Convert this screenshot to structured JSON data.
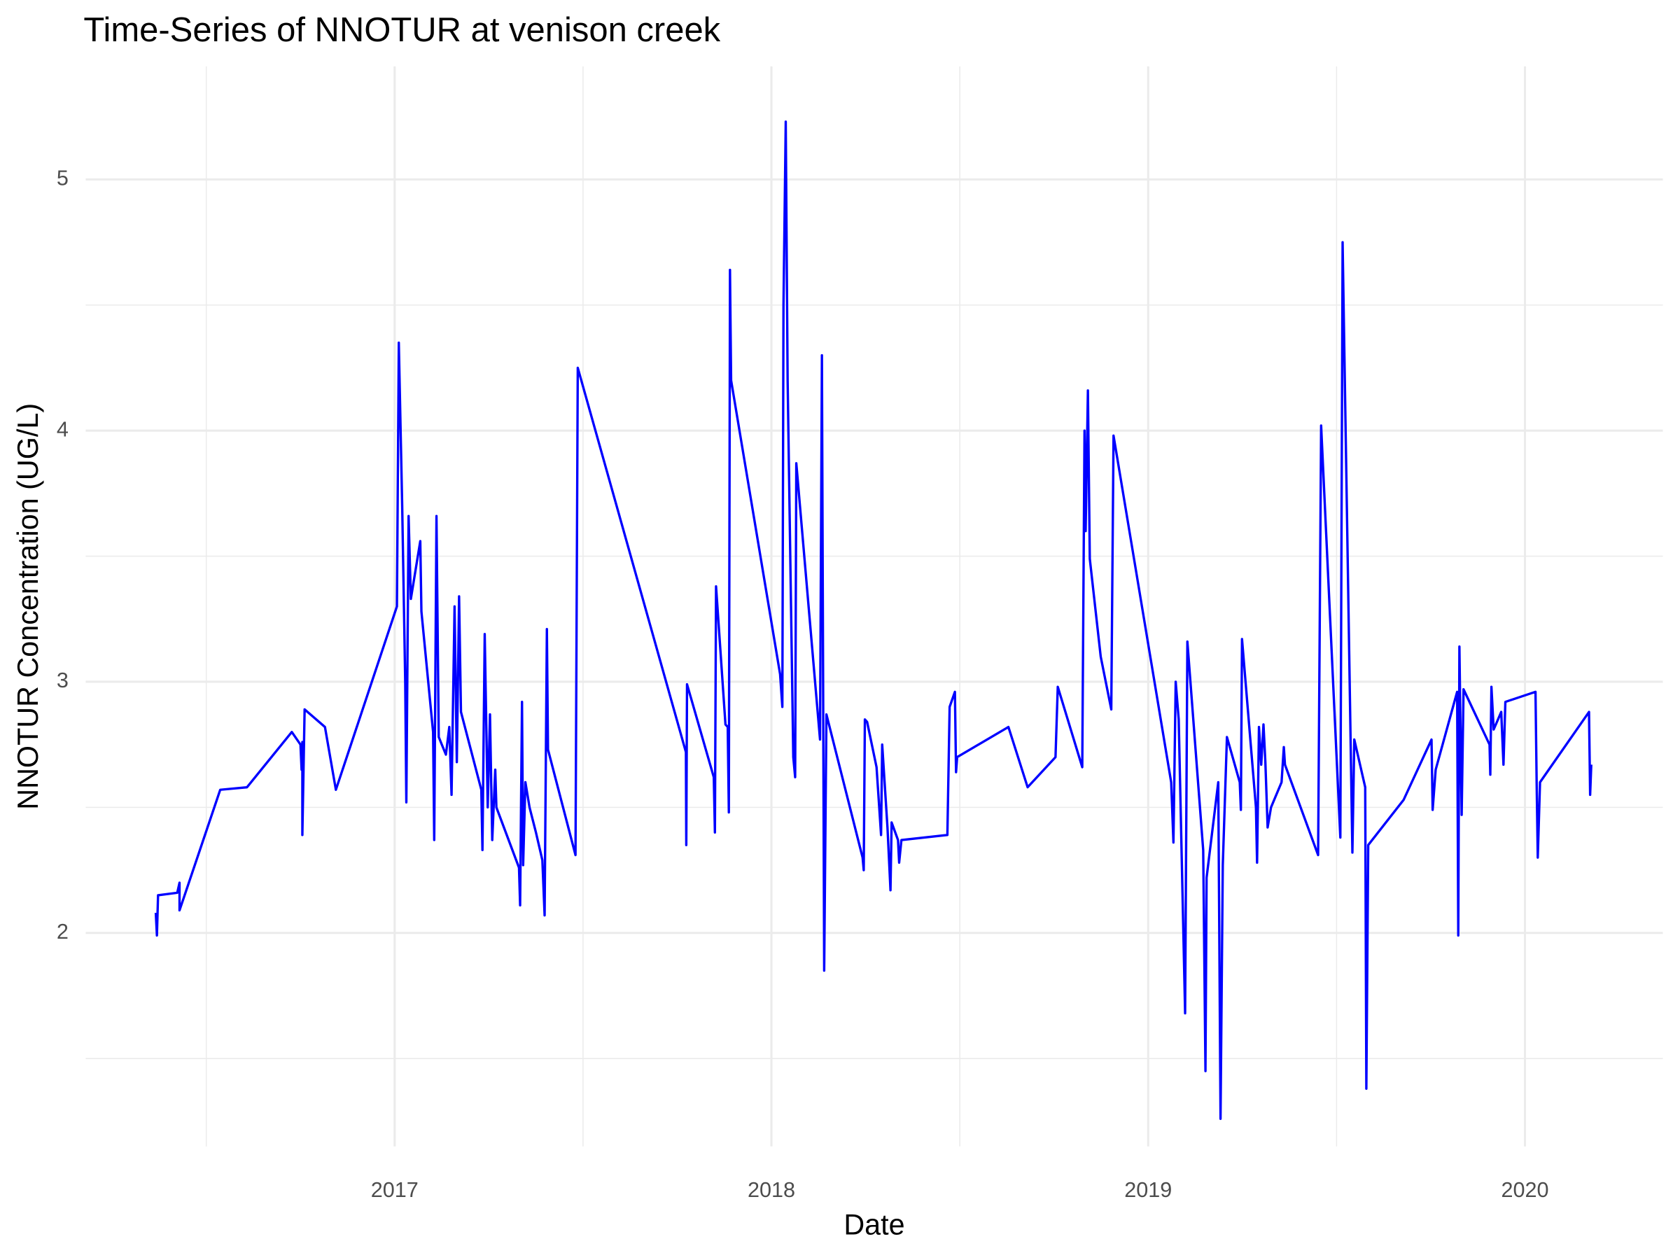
{
  "chart_data": {
    "type": "line",
    "title": "Time-Series of NNOTUR at venison creek",
    "x_label": "Date",
    "y_label": "NNOTUR Concentration (UG/L)",
    "color": "#0000ff",
    "grid": true,
    "xlim": [
      2016.18,
      2020.366
    ],
    "ylim": [
      1.15,
      5.45
    ],
    "xticks": [
      2017,
      2018,
      2019,
      2020
    ],
    "yticks": [
      2,
      3,
      4,
      5
    ],
    "x": [
      2016.366,
      2016.369,
      2016.372,
      2016.423,
      2016.429,
      2016.429,
      2016.537,
      2016.608,
      2016.727,
      2016.75,
      2016.753,
      2016.755,
      2016.755,
      2016.761,
      2016.815,
      2016.844,
      2017.006,
      2017.011,
      2017.02,
      2017.028,
      2017.031,
      2017.037,
      2017.043,
      2017.068,
      2017.071,
      2017.102,
      2017.105,
      2017.111,
      2017.117,
      2017.136,
      2017.145,
      2017.151,
      2017.159,
      2017.165,
      2017.171,
      2017.176,
      2017.23,
      2017.233,
      2017.239,
      2017.247,
      2017.253,
      2017.259,
      2017.267,
      2017.27,
      2017.33,
      2017.333,
      2017.338,
      2017.341,
      2017.347,
      2017.358,
      2017.375,
      2017.392,
      2017.398,
      2017.404,
      2017.407,
      2017.48,
      2017.486,
      2017.773,
      2017.774,
      2017.776,
      2017.847,
      2017.85,
      2017.853,
      2017.878,
      2017.884,
      2017.887,
      2017.89,
      2017.893,
      2018.023,
      2018.029,
      2018.032,
      2018.038,
      2018.043,
      2018.058,
      2018.063,
      2018.066,
      2018.129,
      2018.134,
      2018.14,
      2018.146,
      2018.242,
      2018.245,
      2018.248,
      2018.254,
      2018.279,
      2018.291,
      2018.294,
      2018.308,
      2018.316,
      2018.319,
      2018.336,
      2018.339,
      2018.345,
      2018.467,
      2018.473,
      2018.487,
      2018.49,
      2018.493,
      2018.629,
      2018.68,
      2018.754,
      2018.76,
      2018.825,
      2018.831,
      2018.834,
      2018.84,
      2018.845,
      2018.874,
      2018.902,
      2018.908,
      2019.061,
      2019.067,
      2019.073,
      2019.081,
      2019.098,
      2019.104,
      2019.146,
      2019.152,
      2019.155,
      2019.186,
      2019.192,
      2019.198,
      2019.209,
      2019.243,
      2019.246,
      2019.249,
      2019.286,
      2019.289,
      2019.294,
      2019.3,
      2019.306,
      2019.311,
      2019.317,
      2019.326,
      2019.354,
      2019.36,
      2019.363,
      2019.451,
      2019.459,
      2019.51,
      2019.516,
      2019.542,
      2019.547,
      2019.576,
      2019.579,
      2019.584,
      2019.678,
      2019.752,
      2019.755,
      2019.763,
      2019.82,
      2019.823,
      2019.826,
      2019.832,
      2019.837,
      2019.906,
      2019.908,
      2019.911,
      2019.917,
      2019.937,
      2019.943,
      2019.948,
      2020.028,
      2020.031,
      2020.034,
      2020.04,
      2020.17,
      2020.173,
      2020.176
    ],
    "values": [
      2.08,
      1.99,
      2.15,
      2.16,
      2.2,
      2.09,
      2.57,
      2.58,
      2.8,
      2.75,
      2.65,
      2.76,
      2.39,
      2.89,
      2.82,
      2.57,
      3.3,
      4.35,
      3.7,
      3.0,
      2.52,
      3.66,
      3.33,
      3.56,
      3.28,
      2.8,
      2.37,
      3.66,
      2.78,
      2.71,
      2.82,
      2.55,
      3.3,
      2.68,
      3.34,
      2.88,
      2.57,
      2.33,
      3.19,
      2.5,
      2.87,
      2.37,
      2.65,
      2.5,
      2.26,
      2.11,
      2.92,
      2.27,
      2.6,
      2.5,
      2.4,
      2.29,
      2.07,
      3.21,
      2.73,
      2.31,
      4.25,
      2.72,
      2.35,
      2.99,
      2.62,
      2.4,
      3.38,
      2.83,
      2.82,
      2.48,
      4.64,
      4.2,
      3.03,
      2.9,
      4.5,
      5.23,
      4.2,
      2.7,
      2.62,
      3.87,
      2.77,
      4.3,
      1.85,
      2.87,
      2.3,
      2.25,
      2.85,
      2.84,
      2.66,
      2.39,
      2.75,
      2.42,
      2.17,
      2.44,
      2.37,
      2.28,
      2.37,
      2.39,
      2.9,
      2.96,
      2.64,
      2.7,
      2.82,
      2.58,
      2.7,
      2.98,
      2.66,
      4.0,
      3.6,
      4.16,
      3.49,
      3.1,
      2.89,
      3.98,
      2.6,
      2.36,
      3.0,
      2.85,
      1.68,
      3.16,
      2.33,
      1.45,
      2.22,
      2.6,
      1.26,
      2.27,
      2.78,
      2.6,
      2.49,
      3.17,
      2.5,
      2.28,
      2.82,
      2.67,
      2.83,
      2.68,
      2.42,
      2.5,
      2.6,
      2.74,
      2.67,
      2.31,
      4.02,
      2.38,
      4.75,
      2.32,
      2.77,
      2.58,
      1.38,
      2.35,
      2.53,
      2.77,
      2.49,
      2.65,
      2.96,
      1.99,
      3.14,
      2.47,
      2.97,
      2.75,
      2.63,
      2.98,
      2.81,
      2.88,
      2.67,
      2.92,
      2.96,
      2.6,
      2.3,
      2.6,
      2.88,
      2.55,
      2.67
    ]
  }
}
